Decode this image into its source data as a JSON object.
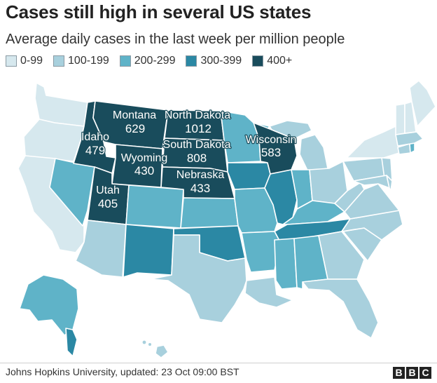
{
  "title": "Cases still high in several US states",
  "subtitle": "Average daily cases in the last week per million people",
  "legend": [
    {
      "label": "0-99",
      "color": "#d6e8ee"
    },
    {
      "label": "100-199",
      "color": "#a8d0dd"
    },
    {
      "label": "200-299",
      "color": "#5fb3c8"
    },
    {
      "label": "300-399",
      "color": "#2b88a4"
    },
    {
      "label": "400+",
      "color": "#194c5c"
    }
  ],
  "labels": [
    {
      "id": "montana",
      "name": "Montana",
      "value": "629"
    },
    {
      "id": "north-dakota",
      "name": "North Dakota",
      "value": "1012"
    },
    {
      "id": "idaho",
      "name": "Idaho",
      "value": "479"
    },
    {
      "id": "wisconsin",
      "name": "Wisconsin",
      "value": "583"
    },
    {
      "id": "south-dakota",
      "name": "South Dakota",
      "value": "808"
    },
    {
      "id": "wyoming",
      "name": "Wyoming",
      "value": "430"
    },
    {
      "id": "nebraska",
      "name": "Nebraska",
      "value": "433"
    },
    {
      "id": "utah",
      "name": "Utah",
      "value": "405"
    }
  ],
  "source": "Johns Hopkins University, updated: 23 Oct 09:00 BST",
  "brand": [
    "B",
    "B",
    "C"
  ]
}
